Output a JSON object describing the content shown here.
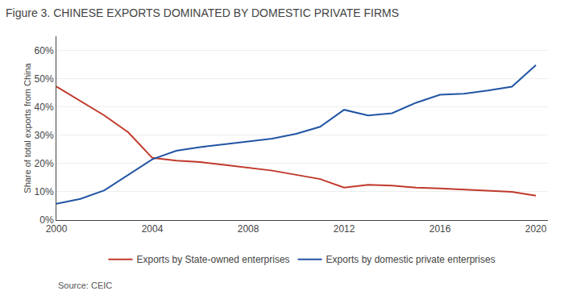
{
  "chart_data": {
    "type": "line",
    "title": "Figure 3. CHINESE EXPORTS DOMINATED BY DOMESTIC PRIVATE FIRMS",
    "ylabel": "Share of total exports from China",
    "annotations": [
      "Source: CEIC"
    ],
    "x": [
      2000,
      2001,
      2002,
      2003,
      2004,
      2005,
      2006,
      2007,
      2008,
      2009,
      2010,
      2011,
      2012,
      2013,
      2014,
      2015,
      2016,
      2017,
      2018,
      2019,
      2020
    ],
    "series": [
      {
        "name": "Exports by State-owned enterprises",
        "color": "#c0392b",
        "values": [
          0.472,
          0.42,
          0.37,
          0.31,
          0.22,
          0.21,
          0.205,
          0.195,
          0.185,
          0.175,
          0.16,
          0.145,
          0.115,
          0.125,
          0.122,
          0.115,
          0.112,
          0.108,
          0.105,
          0.1,
          0.086
        ]
      },
      {
        "name": "Exports by domestic private enterprises",
        "color": "#2255a4",
        "values": [
          0.058,
          0.075,
          0.105,
          0.16,
          0.215,
          0.245,
          0.258,
          0.268,
          0.278,
          0.288,
          0.305,
          0.33,
          0.39,
          0.37,
          0.378,
          0.415,
          0.443,
          0.447,
          0.458,
          0.472,
          0.548
        ]
      }
    ],
    "xlim": [
      2000,
      2020.5
    ],
    "xticks": [
      2000,
      2004,
      2008,
      2012,
      2016,
      2020
    ],
    "ylim": [
      0,
      0.65
    ],
    "yticks": [
      {
        "value": 0.0,
        "label": "0%"
      },
      {
        "value": 0.1,
        "label": "10%"
      },
      {
        "value": 0.2,
        "label": "20%"
      },
      {
        "value": 0.3,
        "label": "30%"
      },
      {
        "value": 0.4,
        "label": "40%"
      },
      {
        "value": 0.5,
        "label": "50%"
      },
      {
        "value": 0.6,
        "label": "60%"
      }
    ],
    "grid": true,
    "legend": "bottom"
  }
}
